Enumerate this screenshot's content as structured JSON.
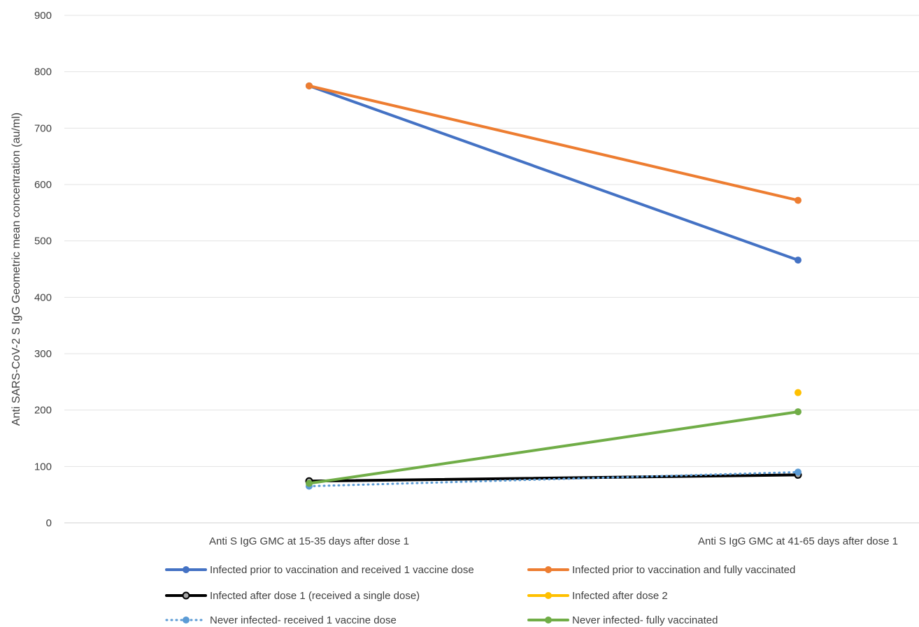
{
  "chart_data": {
    "type": "line",
    "title": "",
    "xlabel": "",
    "ylabel": "Anti SARS-CoV-2 S IgG Geometric mean concentration (au/ml)",
    "ylim": [
      0,
      900
    ],
    "yticks": [
      "0",
      "100",
      "200",
      "300",
      "400",
      "500",
      "600",
      "700",
      "800",
      "900"
    ],
    "grid": true,
    "legend_position": "bottom",
    "categories": [
      "Anti S IgG GMC at 15-35 days after dose 1",
      "Anti S IgG GMC at 41-65 days after dose 1"
    ],
    "series": [
      {
        "name": "Infected prior to vaccination and received 1 vaccine dose",
        "values": [
          775,
          466
        ],
        "color": "#4472C4",
        "style": "solid",
        "marker": "filled"
      },
      {
        "name": "Infected prior to vaccination and fully vaccinated",
        "values": [
          775,
          572
        ],
        "color": "#ED7D31",
        "style": "solid",
        "marker": "filled"
      },
      {
        "name": "Infected after dose 1 (received a single dose)",
        "values": [
          74,
          85
        ],
        "color": "#000000",
        "style": "solid",
        "marker": "hollow"
      },
      {
        "name": "Infected after dose 2",
        "values": [
          null,
          231
        ],
        "color": "#FFC000",
        "style": "solid",
        "marker": "filled"
      },
      {
        "name": "Never infected- received 1 vaccine dose",
        "values": [
          65,
          90
        ],
        "color": "#5B9BD5",
        "style": "dotted",
        "marker": "filled"
      },
      {
        "name": "Never infected- fully vaccinated",
        "values": [
          70,
          197
        ],
        "color": "#70AD47",
        "style": "solid",
        "marker": "filled"
      }
    ]
  }
}
